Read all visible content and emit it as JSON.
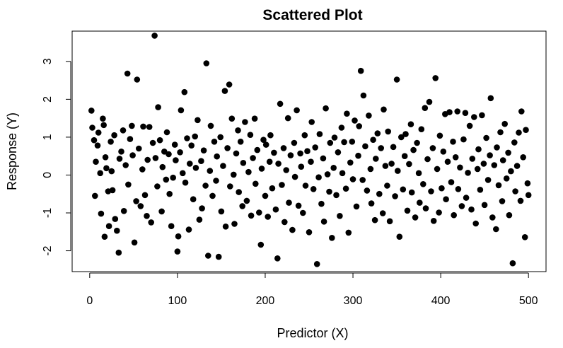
{
  "chart_data": {
    "type": "scatter",
    "title": "Scattered Plot",
    "xlabel": "Predictor (X)",
    "ylabel": "Response (Y)",
    "xlim": [
      -20,
      520
    ],
    "ylim": [
      -2.55,
      3.8
    ],
    "x_ticks": [
      0,
      100,
      200,
      300,
      400,
      500
    ],
    "x_tick_labels": [
      "0",
      "100",
      "200",
      "300",
      "400",
      "500"
    ],
    "y_ticks": [
      -2,
      -1,
      0,
      1,
      2,
      3
    ],
    "y_tick_labels": [
      "-2",
      "-1",
      "0",
      "1",
      "2",
      "3"
    ],
    "grid": false,
    "point_color": "#000000",
    "series": [
      {
        "values_note": "",
        "points": [
          [
            2,
            1.7
          ],
          [
            3,
            1.25
          ],
          [
            5,
            0.92
          ],
          [
            6,
            -0.55
          ],
          [
            7,
            0.35
          ],
          [
            9,
            0.78
          ],
          [
            10,
            1.12
          ],
          [
            12,
            0.05
          ],
          [
            13,
            -1.02
          ],
          [
            15,
            1.49
          ],
          [
            16,
            1.32
          ],
          [
            17,
            -1.63
          ],
          [
            18,
            0.47
          ],
          [
            19,
            0.18
          ],
          [
            21,
            -0.43
          ],
          [
            22,
            -1.35
          ],
          [
            24,
            0.88
          ],
          [
            25,
            0.1
          ],
          [
            26,
            -0.4
          ],
          [
            28,
            1.05
          ],
          [
            29,
            -1.16
          ],
          [
            31,
            -1.47
          ],
          [
            33,
            -2.05
          ],
          [
            34,
            0.43
          ],
          [
            36,
            0.62
          ],
          [
            38,
            1.18
          ],
          [
            39,
            -0.95
          ],
          [
            41,
            0.26
          ],
          [
            43,
            2.68
          ],
          [
            44,
            -0.25
          ],
          [
            46,
            0.95
          ],
          [
            48,
            1.3
          ],
          [
            49,
            0.52
          ],
          [
            51,
            -1.78
          ],
          [
            53,
            -0.69
          ],
          [
            54,
            2.52
          ],
          [
            56,
            0.7
          ],
          [
            58,
            -0.82
          ],
          [
            60,
            0.15
          ],
          [
            61,
            1.28
          ],
          [
            63,
            -0.53
          ],
          [
            65,
            -1.08
          ],
          [
            66,
            0.4
          ],
          [
            68,
            1.27
          ],
          [
            70,
            -1.25
          ],
          [
            72,
            0.85
          ],
          [
            74,
            3.68
          ],
          [
            75,
            0.45
          ],
          [
            77,
            -0.3
          ],
          [
            78,
            1.79
          ],
          [
            80,
            0.92
          ],
          [
            82,
            -0.96
          ],
          [
            83,
            0.21
          ],
          [
            85,
            0.62
          ],
          [
            87,
            -0.12
          ],
          [
            88,
            1.13
          ],
          [
            90,
            0.55
          ],
          [
            91,
            -0.5
          ],
          [
            93,
            -1.35
          ],
          [
            95,
            -0.07
          ],
          [
            97,
            0.8
          ],
          [
            98,
            0.39
          ],
          [
            100,
            -2.02
          ],
          [
            101,
            -1.62
          ],
          [
            103,
            0.6
          ],
          [
            104,
            1.71
          ],
          [
            106,
            0.05
          ],
          [
            108,
            2.19
          ],
          [
            109,
            -0.2
          ],
          [
            111,
            0.97
          ],
          [
            113,
            -1.44
          ],
          [
            114,
            0.3
          ],
          [
            116,
            0.78
          ],
          [
            118,
            -0.64
          ],
          [
            120,
            1.02
          ],
          [
            121,
            0.19
          ],
          [
            123,
            1.45
          ],
          [
            125,
            -1.18
          ],
          [
            127,
            0.37
          ],
          [
            128,
            -0.88
          ],
          [
            130,
            0.65
          ],
          [
            132,
            -0.28
          ],
          [
            133,
            2.95
          ],
          [
            135,
            -2.13
          ],
          [
            137,
            0.11
          ],
          [
            138,
            1.3
          ],
          [
            140,
            -0.55
          ],
          [
            142,
            0.88
          ],
          [
            144,
            -0.15
          ],
          [
            145,
            0.49
          ],
          [
            147,
            -2.16
          ],
          [
            149,
            1.0
          ],
          [
            150,
            -0.96
          ],
          [
            152,
            0.24
          ],
          [
            154,
            2.22
          ],
          [
            155,
            -1.36
          ],
          [
            157,
            0.71
          ],
          [
            159,
            2.39
          ],
          [
            160,
            -0.3
          ],
          [
            162,
            1.49
          ],
          [
            164,
            0.01
          ],
          [
            165,
            -1.29
          ],
          [
            167,
            0.57
          ],
          [
            169,
            1.18
          ],
          [
            170,
            -0.45
          ],
          [
            172,
            0.88
          ],
          [
            174,
            -0.82
          ],
          [
            175,
            0.32
          ],
          [
            177,
            1.4
          ],
          [
            179,
            -0.68
          ],
          [
            181,
            0.08
          ],
          [
            183,
            1.06
          ],
          [
            184,
            -1.07
          ],
          [
            186,
            0.45
          ],
          [
            188,
            1.49
          ],
          [
            189,
            -0.23
          ],
          [
            191,
            0.66
          ],
          [
            193,
            -0.99
          ],
          [
            195,
            -1.84
          ],
          [
            196,
            0.17
          ],
          [
            198,
            0.93
          ],
          [
            200,
            -0.55
          ],
          [
            201,
            0.8
          ],
          [
            203,
            -1.1
          ],
          [
            205,
            0.35
          ],
          [
            206,
            1.05
          ],
          [
            208,
            -0.35
          ],
          [
            210,
            0.59
          ],
          [
            212,
            -0.91
          ],
          [
            214,
            -2.2
          ],
          [
            215,
            0.3
          ],
          [
            217,
            1.88
          ],
          [
            219,
            -0.26
          ],
          [
            221,
            0.71
          ],
          [
            222,
            -1.24
          ],
          [
            224,
            0.13
          ],
          [
            226,
            1.5
          ],
          [
            227,
            -0.73
          ],
          [
            229,
            0.52
          ],
          [
            231,
            -1.45
          ],
          [
            233,
            0.85
          ],
          [
            234,
            -0.05
          ],
          [
            236,
            1.71
          ],
          [
            238,
            -0.81
          ],
          [
            240,
            0.57
          ],
          [
            241,
            0.22
          ],
          [
            243,
            -1.0
          ],
          [
            245,
            1.05
          ],
          [
            246,
            -0.28
          ],
          [
            248,
            0.63
          ],
          [
            250,
            -1.51
          ],
          [
            252,
            0.35
          ],
          [
            253,
            1.4
          ],
          [
            255,
            -0.37
          ],
          [
            257,
            0.73
          ],
          [
            259,
            -2.35
          ],
          [
            261,
            -0.06
          ],
          [
            262,
            1.08
          ],
          [
            264,
            -0.76
          ],
          [
            266,
            0.44
          ],
          [
            267,
            -1.23
          ],
          [
            269,
            1.76
          ],
          [
            271,
            0.02
          ],
          [
            273,
            -0.44
          ],
          [
            274,
            0.85
          ],
          [
            276,
            -1.66
          ],
          [
            278,
            0.19
          ],
          [
            279,
            0.99
          ],
          [
            281,
            -0.53
          ],
          [
            283,
            0.6
          ],
          [
            285,
            -1.08
          ],
          [
            287,
            1.25
          ],
          [
            288,
            0.05
          ],
          [
            290,
            0.87
          ],
          [
            292,
            -0.36
          ],
          [
            293,
            1.62
          ],
          [
            295,
            -1.52
          ],
          [
            297,
            0.33
          ],
          [
            299,
            0.88
          ],
          [
            300,
            -0.11
          ],
          [
            302,
            1.44
          ],
          [
            304,
            -0.83
          ],
          [
            306,
            0.51
          ],
          [
            307,
            1.29
          ],
          [
            309,
            2.75
          ],
          [
            311,
            -0.13
          ],
          [
            312,
            2.1
          ],
          [
            314,
            0.76
          ],
          [
            316,
            -0.41
          ],
          [
            318,
            1.57
          ],
          [
            320,
            0.16
          ],
          [
            321,
            -0.75
          ],
          [
            323,
            0.93
          ],
          [
            325,
            -1.19
          ],
          [
            326,
            0.43
          ],
          [
            328,
            1.1
          ],
          [
            330,
            -0.5
          ],
          [
            332,
            0.71
          ],
          [
            334,
            -1.01
          ],
          [
            335,
            1.73
          ],
          [
            337,
            0.24
          ],
          [
            339,
            -0.28
          ],
          [
            340,
            1.15
          ],
          [
            342,
            -1.22
          ],
          [
            344,
            0.3
          ],
          [
            346,
            0.74
          ],
          [
            348,
            -0.56
          ],
          [
            350,
            2.52
          ],
          [
            351,
            0.11
          ],
          [
            353,
            -1.63
          ],
          [
            355,
            1.0
          ],
          [
            357,
            -0.38
          ],
          [
            359,
            0.5
          ],
          [
            360,
            1.08
          ],
          [
            362,
            -0.94
          ],
          [
            364,
            0.29
          ],
          [
            366,
            1.34
          ],
          [
            367,
            -0.46
          ],
          [
            369,
            0.66
          ],
          [
            371,
            -1.12
          ],
          [
            373,
            0.85
          ],
          [
            375,
            0.05
          ],
          [
            376,
            -0.73
          ],
          [
            378,
            1.21
          ],
          [
            380,
            -0.24
          ],
          [
            382,
            1.77
          ],
          [
            383,
            -0.88
          ],
          [
            385,
            0.42
          ],
          [
            387,
            1.93
          ],
          [
            389,
            -0.43
          ],
          [
            391,
            0.71
          ],
          [
            392,
            -1.21
          ],
          [
            394,
            2.56
          ],
          [
            396,
            0.16
          ],
          [
            398,
            -0.99
          ],
          [
            399,
            1.04
          ],
          [
            401,
            -0.35
          ],
          [
            403,
            0.62
          ],
          [
            405,
            1.61
          ],
          [
            406,
            -0.64
          ],
          [
            408,
            0.35
          ],
          [
            410,
            1.66
          ],
          [
            412,
            -0.19
          ],
          [
            414,
            0.88
          ],
          [
            415,
            -1.06
          ],
          [
            417,
            0.47
          ],
          [
            419,
            1.68
          ],
          [
            420,
            -0.37
          ],
          [
            422,
            0.2
          ],
          [
            424,
            -0.82
          ],
          [
            426,
            0.94
          ],
          [
            428,
            1.64
          ],
          [
            429,
            -0.6
          ],
          [
            431,
            0.06
          ],
          [
            433,
            1.3
          ],
          [
            435,
            -0.91
          ],
          [
            436,
            0.43
          ],
          [
            438,
            1.53
          ],
          [
            440,
            -1.28
          ],
          [
            442,
            0.16
          ],
          [
            443,
            0.68
          ],
          [
            445,
            -0.39
          ],
          [
            447,
            1.58
          ],
          [
            449,
            0.3
          ],
          [
            450,
            -0.79
          ],
          [
            452,
            0.98
          ],
          [
            454,
            -0.13
          ],
          [
            456,
            0.52
          ],
          [
            457,
            2.03
          ],
          [
            459,
            -1.12
          ],
          [
            461,
            0.26
          ],
          [
            463,
            -1.43
          ],
          [
            464,
            0.73
          ],
          [
            466,
            -0.27
          ],
          [
            468,
            1.13
          ],
          [
            470,
            -0.69
          ],
          [
            471,
            0.39
          ],
          [
            473,
            1.35
          ],
          [
            475,
            -0.09
          ],
          [
            477,
            0.59
          ],
          [
            478,
            -1.06
          ],
          [
            480,
            0.1
          ],
          [
            482,
            -2.33
          ],
          [
            484,
            0.86
          ],
          [
            485,
            -0.43
          ],
          [
            487,
            0.24
          ],
          [
            489,
            1.12
          ],
          [
            491,
            -0.68
          ],
          [
            492,
            1.68
          ],
          [
            494,
            0.47
          ],
          [
            496,
            -1.64
          ],
          [
            497,
            1.19
          ],
          [
            499,
            -0.22
          ],
          [
            500,
            -0.53
          ]
        ]
      }
    ]
  }
}
